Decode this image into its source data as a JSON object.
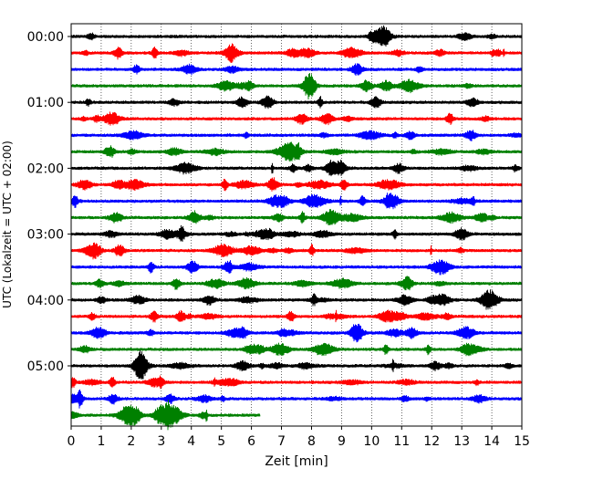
{
  "chart_data": {
    "type": "line",
    "chart_kind": "helicorder seismogram",
    "xlabel": "Zeit  [min]",
    "ylabel": "UTC (Lokalzeit = UTC + 02:00)",
    "xlim": [
      0,
      15
    ],
    "x_ticks": [
      "0",
      "1",
      "2",
      "3",
      "4",
      "5",
      "6",
      "7",
      "8",
      "9",
      "10",
      "11",
      "12",
      "13",
      "14",
      "15"
    ],
    "y_ticks": [
      "00:00",
      "01:00",
      "02:00",
      "03:00",
      "04:00",
      "05:00"
    ],
    "grid": "vertical dotted",
    "line_duration_min": 15,
    "color_cycle": [
      "#000000",
      "#ff0000",
      "#0000ff",
      "#008000"
    ],
    "trace_count": 24,
    "last_trace_end_min": 6.3
  }
}
